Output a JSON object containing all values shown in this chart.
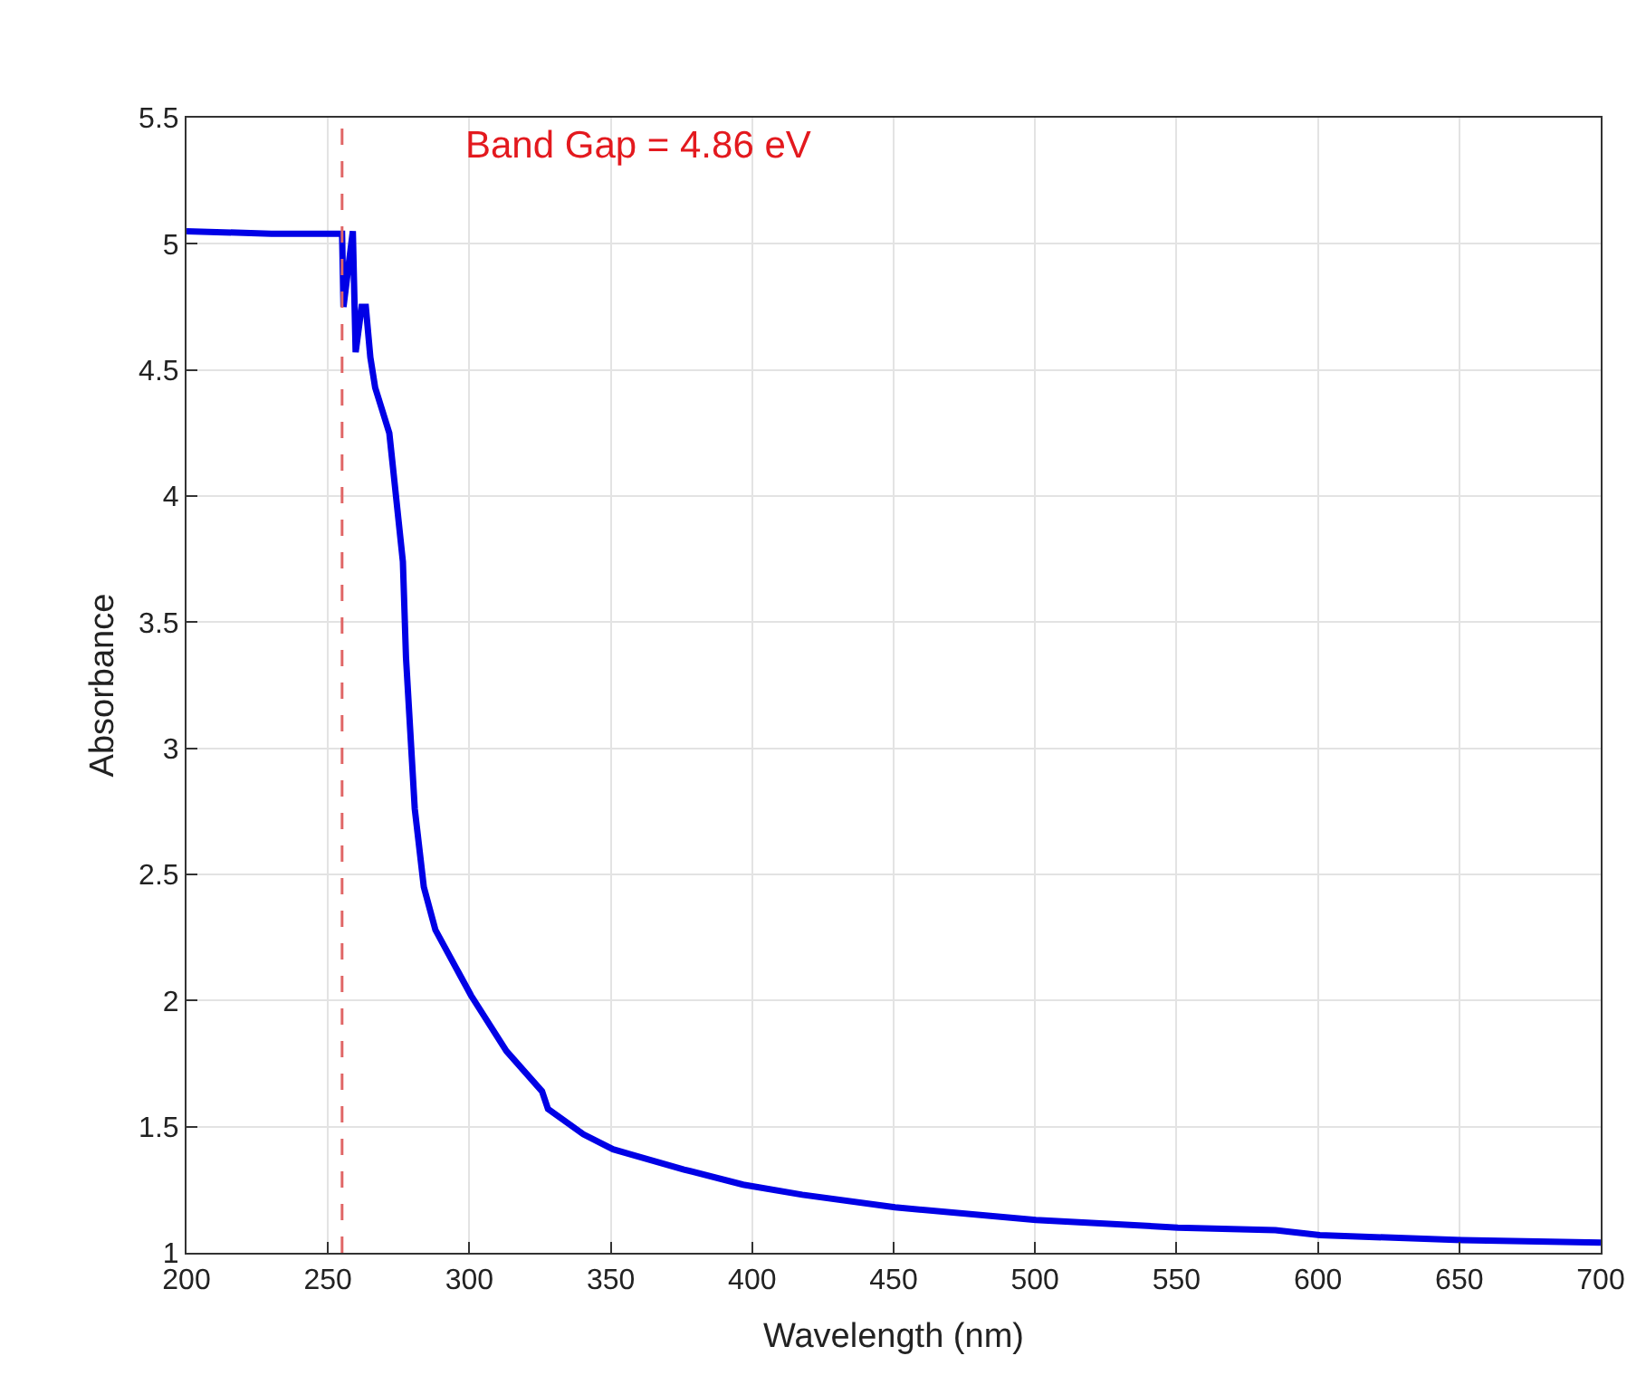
{
  "chart_data": {
    "type": "line",
    "xlabel": "Wavelength (nm)",
    "ylabel": "Absorbance",
    "x": [
      200,
      230,
      255,
      255.5,
      258.8,
      259.8,
      261.9,
      263.4,
      265,
      266.7,
      269.2,
      271.7,
      273.4,
      276.5,
      277.6,
      280.7,
      283.9,
      288,
      300.6,
      313.1,
      325.7,
      327.8,
      340.3,
      350.8,
      375.9,
      396.8,
      417.7,
      450.5,
      500.3,
      550.5,
      585,
      600.7,
      650.9,
      700
    ],
    "series": [
      {
        "color": "#0000e6",
        "values": [
          5.05,
          5.04,
          5.04,
          4.75,
          5.05,
          4.57,
          4.75,
          4.75,
          4.55,
          4.43,
          4.34,
          4.25,
          4.07,
          3.74,
          3.36,
          2.76,
          2.45,
          2.28,
          2.02,
          1.8,
          1.64,
          1.57,
          1.47,
          1.41,
          1.33,
          1.27,
          1.23,
          1.18,
          1.13,
          1.1,
          1.09,
          1.07,
          1.05,
          1.04
        ]
      }
    ],
    "xlim": [
      200,
      700
    ],
    "xticks": [
      200,
      250,
      300,
      350,
      400,
      450,
      500,
      550,
      600,
      650,
      700
    ],
    "ylim": [
      1,
      5.5
    ],
    "yticks": [
      1,
      1.5,
      2,
      2.5,
      3,
      3.5,
      4,
      4.5,
      5,
      5.5
    ],
    "ref_lines": [
      {
        "axis": "x",
        "value": 255,
        "color": "#e06666",
        "line_style": "dashed"
      }
    ],
    "annotations": [
      "Band Gap = 4.86 eV"
    ],
    "grid": true,
    "line_style": "solid",
    "marker": "none"
  }
}
